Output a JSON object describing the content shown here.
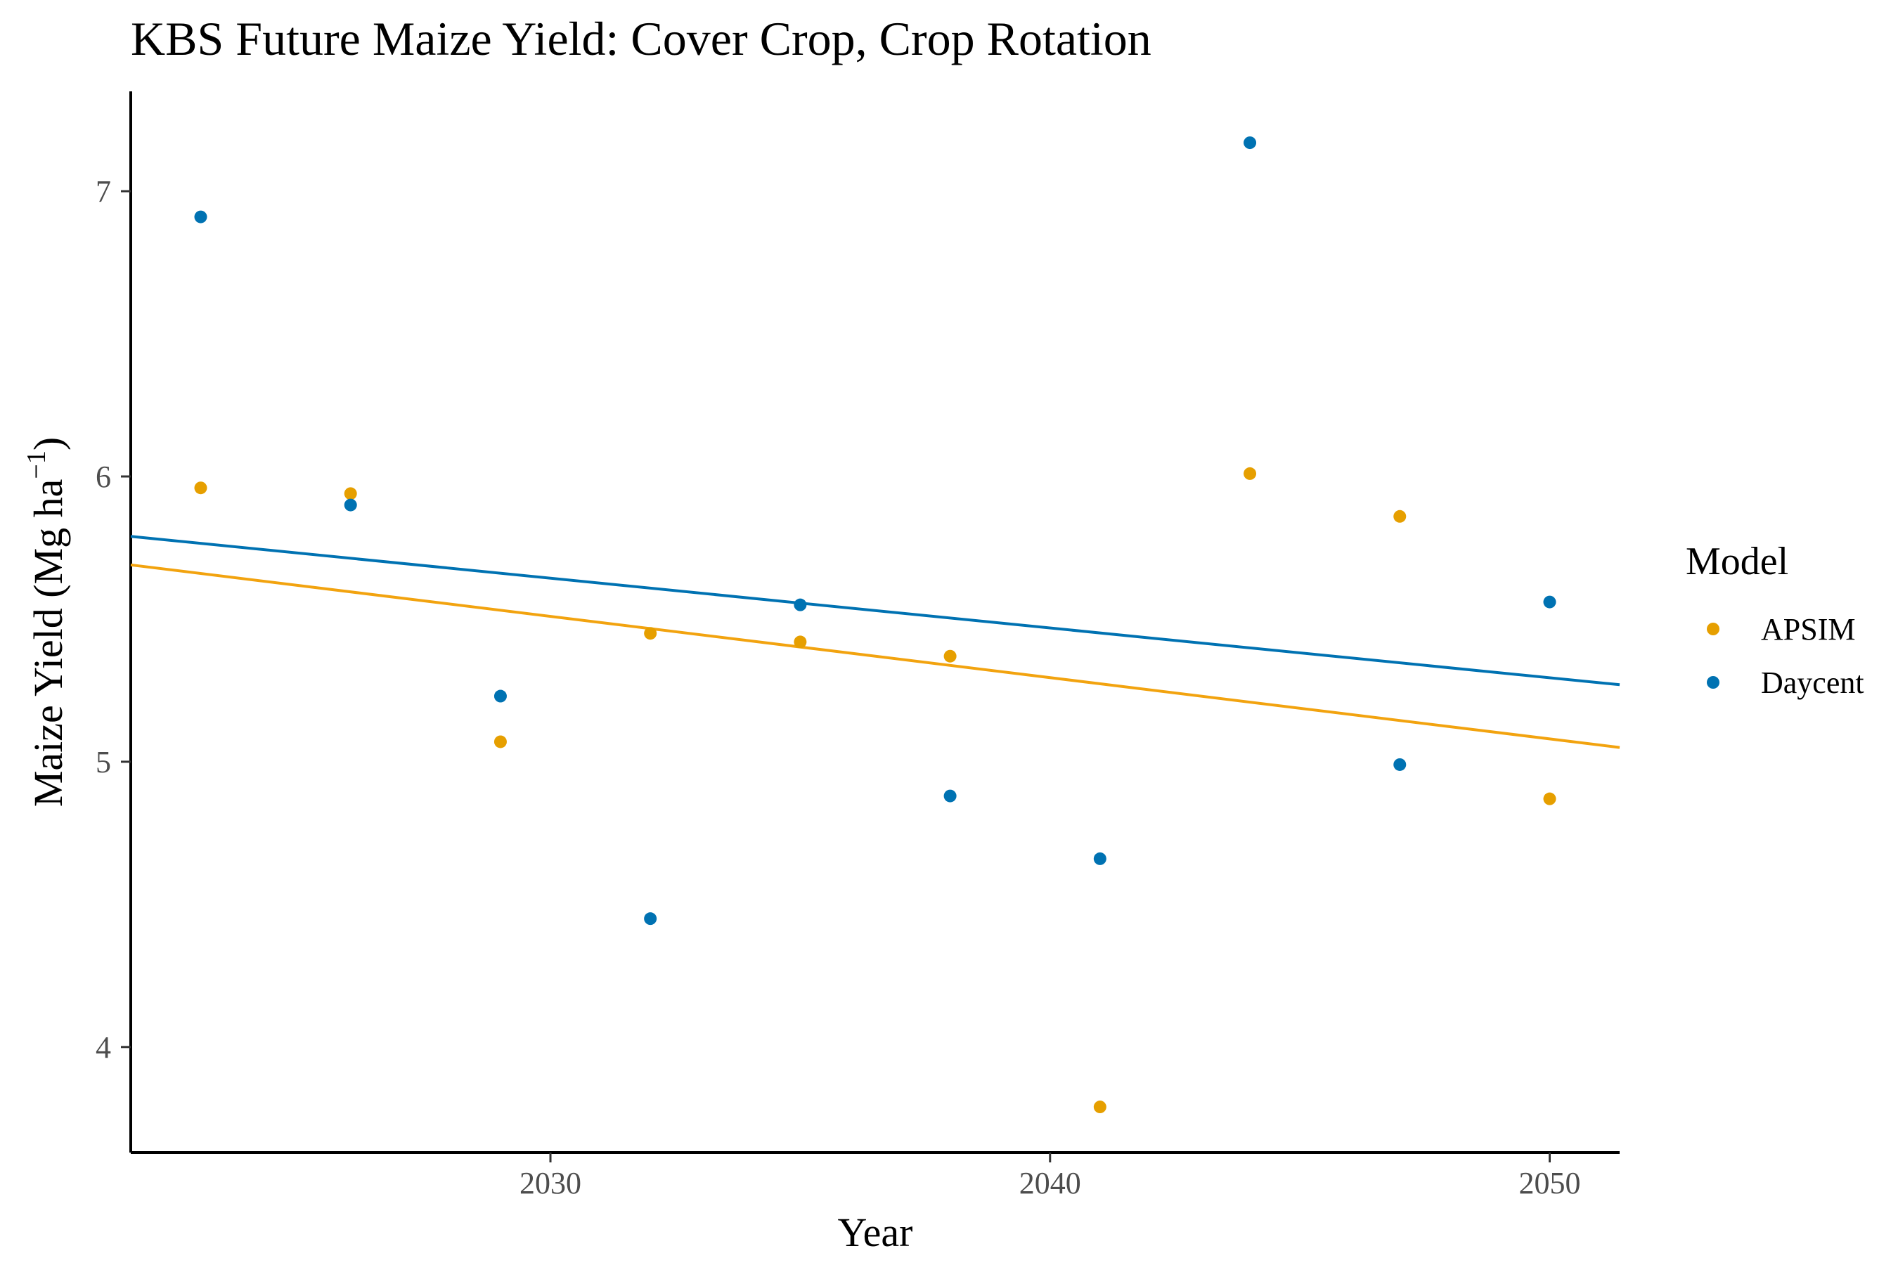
{
  "chart_data": {
    "type": "scatter",
    "title": "KBS Future Maize Yield:  Cover Crop, Crop Rotation",
    "xlabel": "Year",
    "ylabel": {
      "main": "Maize Yield (Mg ha",
      "superscript": "−1",
      "close": ")"
    },
    "xlim": [
      2021.6,
      2051.4
    ],
    "ylim": [
      3.63,
      7.35
    ],
    "x_ticks": [
      {
        "value": 2030,
        "label": "2030"
      },
      {
        "value": 2040,
        "label": "2040"
      },
      {
        "value": 2050,
        "label": "2050"
      }
    ],
    "y_ticks": [
      {
        "value": 4,
        "label": "4"
      },
      {
        "value": 5,
        "label": "5"
      },
      {
        "value": 6,
        "label": "6"
      },
      {
        "value": 7,
        "label": "7"
      }
    ],
    "grid": false,
    "legend": {
      "title": "Model",
      "position": "right"
    },
    "series": [
      {
        "name": "APSIM",
        "color": "#E69F00",
        "line_color": "#F2A30F",
        "points": [
          {
            "x": 2023,
            "y": 5.96
          },
          {
            "x": 2026,
            "y": 5.94
          },
          {
            "x": 2029,
            "y": 5.07
          },
          {
            "x": 2032,
            "y": 5.45
          },
          {
            "x": 2035,
            "y": 5.42
          },
          {
            "x": 2038,
            "y": 5.37
          },
          {
            "x": 2041,
            "y": 3.79
          },
          {
            "x": 2044,
            "y": 6.01
          },
          {
            "x": 2047,
            "y": 5.86
          },
          {
            "x": 2050,
            "y": 4.87
          }
        ],
        "trend": {
          "x": [
            2021.6,
            2051.4
          ],
          "y": [
            5.69,
            5.05
          ]
        }
      },
      {
        "name": "Daycent",
        "color": "#0072B2",
        "line_color": "#0072B2",
        "points": [
          {
            "x": 2023,
            "y": 6.91
          },
          {
            "x": 2026,
            "y": 5.9
          },
          {
            "x": 2029,
            "y": 5.23
          },
          {
            "x": 2032,
            "y": 4.45
          },
          {
            "x": 2035,
            "y": 5.55
          },
          {
            "x": 2038,
            "y": 4.88
          },
          {
            "x": 2041,
            "y": 4.66
          },
          {
            "x": 2044,
            "y": 7.17
          },
          {
            "x": 2047,
            "y": 4.99
          },
          {
            "x": 2050,
            "y": 5.56
          }
        ],
        "trend": {
          "x": [
            2021.6,
            2051.4
          ],
          "y": [
            5.79,
            5.27
          ]
        }
      }
    ]
  }
}
